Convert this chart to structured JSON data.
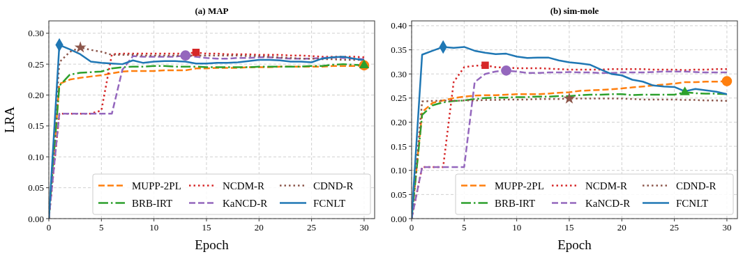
{
  "chart_data": [
    {
      "type": "line",
      "title": "(a) MAP",
      "xlabel": "Epoch",
      "ylabel": "LRA",
      "xlim": [
        0,
        31
      ],
      "ylim": [
        0,
        0.32
      ],
      "xticks": [
        0,
        5,
        10,
        15,
        20,
        25,
        30
      ],
      "yticks": [
        {
          "value": 0,
          "label": "0.00"
        },
        {
          "value": 0.05,
          "label": "0.05"
        },
        {
          "value": 0.1,
          "label": "0.10"
        },
        {
          "value": 0.15,
          "label": "0.15"
        },
        {
          "value": 0.2,
          "label": "0.20"
        },
        {
          "value": 0.25,
          "label": "0.25"
        },
        {
          "value": 0.3,
          "label": "0.30"
        }
      ],
      "grid": true,
      "legend": "bottom right",
      "marker": "none",
      "x": [
        0,
        1,
        2,
        3,
        4,
        5,
        6,
        7,
        8,
        9,
        10,
        11,
        12,
        13,
        14,
        15,
        16,
        17,
        18,
        19,
        20,
        21,
        22,
        23,
        24,
        25,
        26,
        27,
        28,
        29,
        30
      ],
      "series": [
        {
          "name": "MUPP-2PL",
          "color": "#ff7f0e",
          "line_style": "dashed",
          "values": [
            0,
            0.218,
            0.225,
            0.228,
            0.23,
            0.232,
            0.235,
            0.238,
            0.239,
            0.239,
            0.239,
            0.24,
            0.24,
            0.24,
            0.243,
            0.243,
            0.244,
            0.244,
            0.244,
            0.245,
            0.245,
            0.245,
            0.246,
            0.246,
            0.246,
            0.246,
            0.246,
            0.247,
            0.247,
            0.247,
            0.248
          ]
        },
        {
          "name": "BRB-IRT",
          "color": "#2ca02c",
          "line_style": "dashdot",
          "values": [
            0,
            0.215,
            0.233,
            0.236,
            0.237,
            0.238,
            0.243,
            0.245,
            0.246,
            0.246,
            0.247,
            0.247,
            0.246,
            0.246,
            0.246,
            0.245,
            0.245,
            0.245,
            0.245,
            0.245,
            0.246,
            0.246,
            0.246,
            0.246,
            0.246,
            0.247,
            0.247,
            0.249,
            0.25,
            0.249,
            0.248
          ]
        },
        {
          "name": "NCDM-R",
          "color": "#d62728",
          "line_style": "dotted",
          "values": [
            0,
            0.17,
            0.17,
            0.17,
            0.17,
            0.175,
            0.266,
            0.267,
            0.267,
            0.267,
            0.267,
            0.267,
            0.267,
            0.267,
            0.269,
            0.267,
            0.267,
            0.266,
            0.266,
            0.266,
            0.265,
            0.265,
            0.265,
            0.264,
            0.264,
            0.263,
            0.262,
            0.262,
            0.262,
            0.262,
            0.261
          ]
        },
        {
          "name": "KaNCD-R",
          "color": "#9467bd",
          "line_style": "dashed",
          "values": [
            0,
            0.17,
            0.17,
            0.17,
            0.17,
            0.17,
            0.17,
            0.241,
            0.263,
            0.262,
            0.262,
            0.262,
            0.262,
            0.264,
            0.262,
            0.26,
            0.259,
            0.259,
            0.26,
            0.26,
            0.261,
            0.261,
            0.26,
            0.259,
            0.259,
            0.259,
            0.26,
            0.261,
            0.26,
            0.259,
            0.258
          ]
        },
        {
          "name": "CDND-R",
          "color": "#8c564b",
          "line_style": "dotted",
          "values": [
            0,
            0.253,
            0.27,
            0.277,
            0.273,
            0.27,
            0.265,
            0.265,
            0.265,
            0.264,
            0.264,
            0.264,
            0.264,
            0.264,
            0.264,
            0.264,
            0.264,
            0.264,
            0.264,
            0.263,
            0.263,
            0.262,
            0.261,
            0.26,
            0.259,
            0.259,
            0.258,
            0.258,
            0.257,
            0.257,
            0.257
          ]
        },
        {
          "name": "FCNLT",
          "color": "#1f77b4",
          "line_style": "solid",
          "values": [
            0,
            0.281,
            0.274,
            0.266,
            0.254,
            0.252,
            0.251,
            0.25,
            0.256,
            0.252,
            0.254,
            0.255,
            0.255,
            0.254,
            0.251,
            0.251,
            0.252,
            0.252,
            0.253,
            0.255,
            0.257,
            0.257,
            0.256,
            0.254,
            0.254,
            0.253,
            0.259,
            0.261,
            0.262,
            0.259,
            0.256
          ]
        },
        {
          "type": "scatter",
          "color": "#ff7f0e",
          "marker": "circle",
          "x": [
            30
          ],
          "values": [
            0.248
          ]
        },
        {
          "type": "scatter",
          "color": "#2ca02c",
          "marker": "triangle",
          "x": [
            30
          ],
          "values": [
            0.248
          ]
        },
        {
          "type": "scatter",
          "color": "#d62728",
          "marker": "square",
          "x": [
            14
          ],
          "values": [
            0.269
          ]
        },
        {
          "type": "scatter",
          "color": "#9467bd",
          "marker": "circle",
          "x": [
            13
          ],
          "values": [
            0.264
          ]
        },
        {
          "type": "scatter",
          "color": "#8c564b",
          "marker": "star",
          "x": [
            3
          ],
          "values": [
            0.277
          ]
        },
        {
          "type": "scatter",
          "color": "#1f77b4",
          "marker": "diamond",
          "x": [
            1
          ],
          "values": [
            0.281
          ]
        }
      ]
    },
    {
      "type": "line",
      "title": "(b) sim-mole",
      "xlabel": "Epoch",
      "xlim": [
        0,
        31
      ],
      "ylim": [
        0,
        0.41
      ],
      "xticks": [
        0,
        5,
        10,
        15,
        20,
        25,
        30
      ],
      "yticks": [
        {
          "value": 0,
          "label": "0.00"
        },
        {
          "value": 0.05,
          "label": "0.05"
        },
        {
          "value": 0.1,
          "label": "0.10"
        },
        {
          "value": 0.15,
          "label": "0.15"
        },
        {
          "value": 0.2,
          "label": "0.20"
        },
        {
          "value": 0.25,
          "label": "0.25"
        },
        {
          "value": 0.3,
          "label": "0.30"
        },
        {
          "value": 0.35,
          "label": "0.35"
        },
        {
          "value": 0.4,
          "label": "0.40"
        }
      ],
      "grid": true,
      "legend": "bottom right",
      "marker": "none",
      "x": [
        0,
        1,
        2,
        3,
        4,
        5,
        6,
        7,
        8,
        9,
        10,
        11,
        12,
        13,
        14,
        15,
        16,
        17,
        18,
        19,
        20,
        21,
        22,
        23,
        24,
        25,
        26,
        27,
        28,
        29,
        30
      ],
      "series": [
        {
          "name": "MUPP-2PL",
          "color": "#ff7f0e",
          "line_style": "dashed",
          "values": [
            0,
            0.221,
            0.24,
            0.245,
            0.25,
            0.253,
            0.255,
            0.256,
            0.256,
            0.257,
            0.258,
            0.258,
            0.258,
            0.259,
            0.261,
            0.262,
            0.265,
            0.266,
            0.267,
            0.268,
            0.27,
            0.272,
            0.274,
            0.276,
            0.278,
            0.28,
            0.283,
            0.283,
            0.284,
            0.284,
            0.285
          ]
        },
        {
          "name": "BRB-IRT",
          "color": "#2ca02c",
          "line_style": "dashdot",
          "values": [
            0,
            0.215,
            0.235,
            0.241,
            0.244,
            0.245,
            0.248,
            0.25,
            0.251,
            0.251,
            0.252,
            0.252,
            0.253,
            0.253,
            0.254,
            0.254,
            0.256,
            0.257,
            0.257,
            0.258,
            0.258,
            0.256,
            0.257,
            0.257,
            0.257,
            0.257,
            0.262,
            0.26,
            0.259,
            0.259,
            0.258
          ]
        },
        {
          "name": "NCDM-R",
          "color": "#d62728",
          "line_style": "dotted",
          "values": [
            0,
            0.107,
            0.107,
            0.107,
            0.283,
            0.314,
            0.317,
            0.318,
            0.314,
            0.313,
            0.312,
            0.312,
            0.312,
            0.311,
            0.31,
            0.309,
            0.309,
            0.309,
            0.309,
            0.31,
            0.31,
            0.31,
            0.31,
            0.309,
            0.309,
            0.309,
            0.308,
            0.309,
            0.309,
            0.31,
            0.31
          ]
        },
        {
          "name": "KaNCD-R",
          "color": "#9467bd",
          "line_style": "dashed",
          "values": [
            0,
            0.107,
            0.107,
            0.107,
            0.107,
            0.107,
            0.283,
            0.3,
            0.305,
            0.307,
            0.305,
            0.302,
            0.302,
            0.303,
            0.303,
            0.304,
            0.303,
            0.303,
            0.302,
            0.302,
            0.303,
            0.303,
            0.303,
            0.304,
            0.305,
            0.305,
            0.305,
            0.304,
            0.303,
            0.303,
            0.303
          ]
        },
        {
          "name": "CDND-R",
          "color": "#8c564b",
          "line_style": "dotted",
          "values": [
            0,
            0.243,
            0.244,
            0.245,
            0.244,
            0.245,
            0.245,
            0.246,
            0.246,
            0.247,
            0.247,
            0.247,
            0.248,
            0.248,
            0.248,
            0.249,
            0.249,
            0.249,
            0.249,
            0.249,
            0.249,
            0.248,
            0.247,
            0.247,
            0.247,
            0.247,
            0.246,
            0.246,
            0.245,
            0.245,
            0.244
          ]
        },
        {
          "name": "FCNLT",
          "color": "#1f77b4",
          "line_style": "solid",
          "values": [
            0,
            0.34,
            0.348,
            0.356,
            0.354,
            0.356,
            0.348,
            0.344,
            0.341,
            0.342,
            0.336,
            0.333,
            0.334,
            0.334,
            0.328,
            0.324,
            0.322,
            0.319,
            0.309,
            0.3,
            0.297,
            0.288,
            0.284,
            0.276,
            0.274,
            0.273,
            0.264,
            0.269,
            0.266,
            0.263,
            0.258
          ]
        },
        {
          "type": "scatter",
          "color": "#ff7f0e",
          "marker": "circle",
          "x": [
            30
          ],
          "values": [
            0.285
          ]
        },
        {
          "type": "scatter",
          "color": "#2ca02c",
          "marker": "triangle",
          "x": [
            26
          ],
          "values": [
            0.262
          ]
        },
        {
          "type": "scatter",
          "color": "#d62728",
          "marker": "square",
          "x": [
            7
          ],
          "values": [
            0.318
          ]
        },
        {
          "type": "scatter",
          "color": "#9467bd",
          "marker": "circle",
          "x": [
            9
          ],
          "values": [
            0.307
          ]
        },
        {
          "type": "scatter",
          "color": "#8c564b",
          "marker": "star",
          "x": [
            15
          ],
          "values": [
            0.249
          ]
        },
        {
          "type": "scatter",
          "color": "#1f77b4",
          "marker": "diamond",
          "x": [
            3
          ],
          "values": [
            0.356
          ]
        }
      ]
    }
  ]
}
